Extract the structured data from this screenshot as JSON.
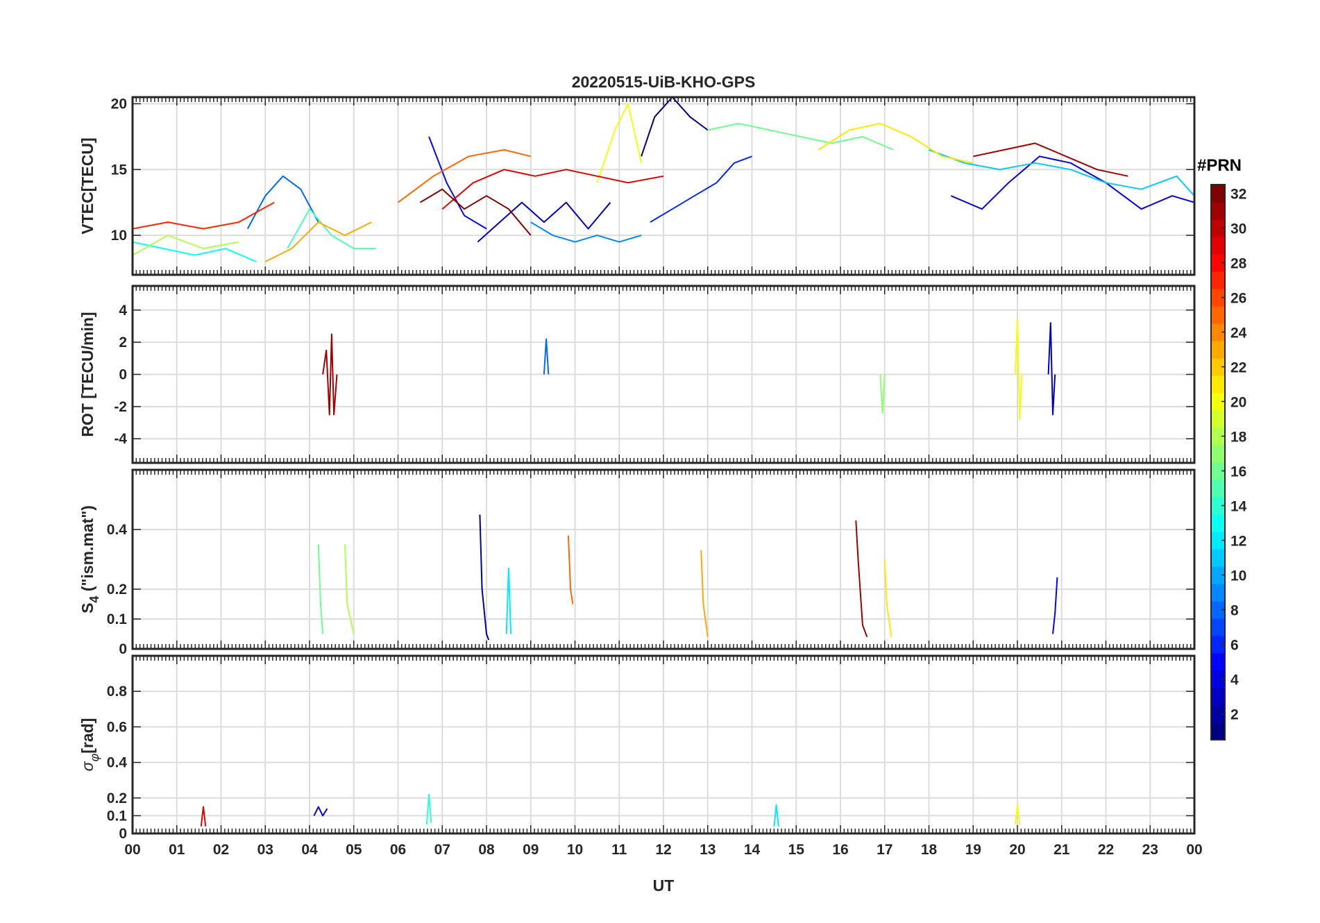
{
  "chart_data": {
    "type": "line",
    "title": "20220515-UiB-KHO-GPS",
    "xlabel": "UT",
    "x_tick_labels": [
      "00",
      "01",
      "02",
      "03",
      "04",
      "05",
      "06",
      "07",
      "08",
      "09",
      "10",
      "11",
      "12",
      "13",
      "14",
      "15",
      "16",
      "17",
      "18",
      "19",
      "20",
      "21",
      "22",
      "23",
      "00"
    ],
    "xlim": [
      0,
      24
    ],
    "grid": true,
    "panels": [
      {
        "id": "vtec",
        "ylabel": "VTEC[TECU]",
        "ylim": [
          7,
          20.5
        ],
        "y_ticks": [
          10,
          15,
          20
        ],
        "y_tick_labels": [
          "10",
          "15",
          "20"
        ],
        "series": [
          {
            "prn": 1,
            "x": [
              11.5,
              11.8,
              12.2,
              12.6,
              13.0
            ],
            "y": [
              16,
              19,
              20.5,
              19,
              18
            ]
          },
          {
            "prn": 3,
            "x": [
              7.8,
              8.3,
              8.8,
              9.3,
              9.8,
              10.3,
              10.8
            ],
            "y": [
              9.5,
              11,
              12.5,
              11,
              12.5,
              10.5,
              12.5
            ]
          },
          {
            "prn": 4,
            "x": [
              18.5,
              19.2,
              19.8,
              20.5,
              21.2,
              22,
              22.8,
              23.5,
              24
            ],
            "y": [
              13,
              12,
              14,
              16,
              15.5,
              14,
              12,
              13,
              12.5
            ]
          },
          {
            "prn": 5,
            "x": [
              6.7,
              7.1,
              7.5,
              8.0
            ],
            "y": [
              17.5,
              14,
              11.5,
              10.5
            ]
          },
          {
            "prn": 6,
            "x": [
              11.7,
              12.2,
              12.7,
              13.2,
              13.6,
              14.0
            ],
            "y": [
              11,
              12,
              13,
              14,
              15.5,
              16
            ]
          },
          {
            "prn": 8,
            "x": [
              2.6,
              3.0,
              3.4,
              3.8,
              4.2
            ],
            "y": [
              10.5,
              13,
              14.5,
              13.5,
              11
            ]
          },
          {
            "prn": 9,
            "x": [
              9.0,
              9.5,
              10.0,
              10.5,
              11.0,
              11.5
            ],
            "y": [
              11,
              10,
              9.5,
              10,
              9.5,
              10
            ]
          },
          {
            "prn": 11,
            "x": [
              18.0,
              18.8,
              19.6,
              20.4,
              21.2,
              22.0,
              22.8,
              23.6,
              24
            ],
            "y": [
              16.5,
              15.5,
              15,
              15.5,
              15,
              14,
              13.5,
              14.5,
              13
            ]
          },
          {
            "prn": 13,
            "x": [
              0,
              0.7,
              1.4,
              2.1,
              2.8
            ],
            "y": [
              9.5,
              9,
              8.5,
              9,
              8
            ]
          },
          {
            "prn": 15,
            "x": [
              3.5,
              4.0,
              4.5,
              5.0,
              5.5
            ],
            "y": [
              9,
              12,
              10,
              9,
              9
            ]
          },
          {
            "prn": 16,
            "x": [
              13.0,
              13.7,
              14.4,
              15.1,
              15.8,
              16.5,
              17.2
            ],
            "y": [
              18,
              18.5,
              18,
              17.5,
              17,
              17.5,
              16.5
            ]
          },
          {
            "prn": 18,
            "x": [
              0,
              0.8,
              1.6,
              2.4
            ],
            "y": [
              8.5,
              10,
              9,
              9.5
            ]
          },
          {
            "prn": 20,
            "x": [
              10.5,
              10.9,
              11.2,
              11.5
            ],
            "y": [
              14,
              18,
              20,
              15.5
            ]
          },
          {
            "prn": 21,
            "x": [
              15.5,
              16.2,
              16.9,
              17.6,
              18.3,
              19.0
            ],
            "y": [
              16.5,
              18,
              18.5,
              17.5,
              16,
              15.5
            ]
          },
          {
            "prn": 23,
            "x": [
              3.0,
              3.6,
              4.2,
              4.8,
              5.4
            ],
            "y": [
              8,
              9,
              11,
              10,
              11
            ]
          },
          {
            "prn": 25,
            "x": [
              6.0,
              6.8,
              7.6,
              8.4,
              9.0
            ],
            "y": [
              12.5,
              14.5,
              16,
              16.5,
              16
            ]
          },
          {
            "prn": 27,
            "x": [
              0,
              0.8,
              1.6,
              2.4,
              3.2
            ],
            "y": [
              10.5,
              11,
              10.5,
              11,
              12.5
            ]
          },
          {
            "prn": 29,
            "x": [
              7.0,
              7.7,
              8.4,
              9.1,
              9.8,
              10.5,
              11.2,
              12.0
            ],
            "y": [
              12,
              14,
              15,
              14.5,
              15,
              14.5,
              14,
              14.5
            ]
          },
          {
            "prn": 31,
            "x": [
              19.0,
              19.7,
              20.4,
              21.1,
              21.8,
              22.5
            ],
            "y": [
              16,
              16.5,
              17,
              16,
              15,
              14.5
            ]
          },
          {
            "prn": 32,
            "x": [
              6.5,
              7.0,
              7.5,
              8.0,
              8.5,
              9.0
            ],
            "y": [
              12.5,
              13.5,
              12,
              13,
              12,
              10
            ]
          }
        ]
      },
      {
        "id": "rot",
        "ylabel": "ROT [TECU/min]",
        "ylim": [
          -5.5,
          5.5
        ],
        "y_ticks": [
          -4,
          -2,
          0,
          2,
          4
        ],
        "y_tick_labels": [
          "-4",
          "-2",
          "0",
          "2",
          "4"
        ],
        "series": [
          {
            "prn": 31,
            "x": [
              4.3,
              4.38,
              4.45,
              4.5,
              4.55,
              4.62
            ],
            "y": [
              0,
              1.5,
              -2.5,
              2.5,
              -2.5,
              0
            ]
          },
          {
            "prn": 20,
            "x": [
              19.95,
              20.0,
              20.05,
              20.1
            ],
            "y": [
              0,
              3.4,
              -2.8,
              0
            ]
          },
          {
            "prn": 3,
            "x": [
              20.7,
              20.75,
              20.8,
              20.85
            ],
            "y": [
              0,
              3.2,
              -2.5,
              0
            ]
          },
          {
            "prn": 8,
            "x": [
              9.3,
              9.35,
              9.4
            ],
            "y": [
              0,
              2.2,
              0
            ]
          },
          {
            "prn": 17,
            "x": [
              16.9,
              16.95,
              17.0
            ],
            "y": [
              0,
              -2.4,
              0
            ]
          }
        ]
      },
      {
        "id": "s4",
        "ylabel": "S4 (\"ism.mat\")",
        "ylabel_main": "S",
        "ylabel_sub": "4",
        "ylabel_rest": " (\"ism.mat\")",
        "ylim": [
          0,
          0.6
        ],
        "y_ticks": [
          0,
          0.1,
          0.2,
          0.4
        ],
        "y_tick_labels": [
          "0",
          "0.1",
          "0.2",
          "0.4"
        ],
        "series": [
          {
            "prn": 2,
            "x": [
              7.85,
              7.9,
              8.0,
              8.05
            ],
            "y": [
              0.45,
              0.2,
              0.05,
              0.03
            ]
          },
          {
            "prn": 25,
            "x": [
              9.85,
              9.9,
              9.95
            ],
            "y": [
              0.38,
              0.2,
              0.15
            ]
          },
          {
            "prn": 16,
            "x": [
              4.2,
              4.25,
              4.3
            ],
            "y": [
              0.35,
              0.15,
              0.05
            ]
          },
          {
            "prn": 18,
            "x": [
              4.8,
              4.85,
              5.0
            ],
            "y": [
              0.35,
              0.15,
              0.05
            ]
          },
          {
            "prn": 12,
            "x": [
              8.45,
              8.5,
              8.55
            ],
            "y": [
              0.05,
              0.27,
              0.05
            ]
          },
          {
            "prn": 23,
            "x": [
              12.85,
              12.9,
              13.0
            ],
            "y": [
              0.33,
              0.15,
              0.04
            ]
          },
          {
            "prn": 31,
            "x": [
              16.35,
              16.4,
              16.5,
              16.6
            ],
            "y": [
              0.43,
              0.3,
              0.08,
              0.04
            ]
          },
          {
            "prn": 21,
            "x": [
              17.0,
              17.05,
              17.15
            ],
            "y": [
              0.3,
              0.15,
              0.04
            ]
          },
          {
            "prn": 5,
            "x": [
              20.8,
              20.85,
              20.9
            ],
            "y": [
              0.05,
              0.12,
              0.24
            ]
          }
        ]
      },
      {
        "id": "sigma",
        "ylabel": "σφ[rad]",
        "ylabel_main": "σ",
        "ylabel_sub": "φ",
        "ylabel_rest": "[rad]",
        "ylim": [
          0,
          1.0
        ],
        "y_ticks": [
          0,
          0.1,
          0.2,
          0.4,
          0.6,
          0.8
        ],
        "y_tick_labels": [
          "0",
          "0.1",
          "0.2",
          "0.4",
          "0.6",
          "0.8"
        ],
        "series": [
          {
            "prn": 14,
            "x": [
              6.65,
              6.7,
              6.75
            ],
            "y": [
              0.05,
              0.22,
              0.06
            ]
          },
          {
            "prn": 4,
            "x": [
              4.1,
              4.2,
              4.3,
              4.4
            ],
            "y": [
              0.1,
              0.15,
              0.1,
              0.14
            ]
          },
          {
            "prn": 20,
            "x": [
              19.95,
              20.0,
              20.05
            ],
            "y": [
              0.05,
              0.16,
              0.05
            ]
          },
          {
            "prn": 12,
            "x": [
              14.5,
              14.55,
              14.6
            ],
            "y": [
              0.04,
              0.16,
              0.04
            ]
          },
          {
            "prn": 29,
            "x": [
              1.55,
              1.6,
              1.65
            ],
            "y": [
              0.04,
              0.15,
              0.04
            ]
          }
        ]
      }
    ],
    "colorbar": {
      "title": "#PRN",
      "range": [
        1,
        32
      ],
      "tick_labels": [
        "2",
        "4",
        "6",
        "8",
        "10",
        "12",
        "14",
        "16",
        "18",
        "20",
        "22",
        "24",
        "26",
        "28",
        "30",
        "32"
      ],
      "colormap": "jet"
    }
  }
}
